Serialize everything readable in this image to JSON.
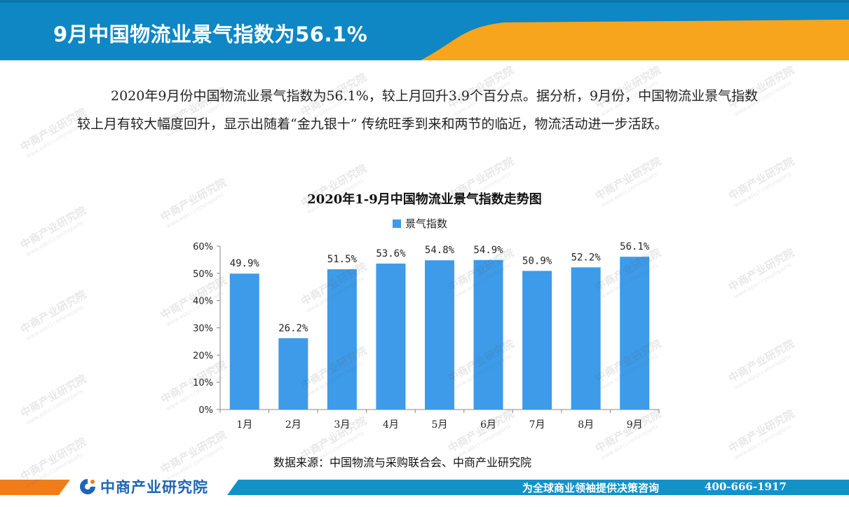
{
  "header": {
    "title": "9月中国物流业景气指数为56.1%",
    "colors": {
      "blue": "#0e87c4",
      "orange": "#f6a51d"
    }
  },
  "intro": {
    "text": "2020年9月份中国物流业景气指数为56.1%，较上月回升3.9个百分点。据分析，9月份，中国物流业景气指数较上月有较大幅度回升，显示出随着“金九银十” 传统旺季到来和两节的临近，物流活动进一步活跃。"
  },
  "chart_data": {
    "type": "bar",
    "title": "2020年1-9月中国物流业景气指数走势图",
    "categories": [
      "1月",
      "2月",
      "3月",
      "4月",
      "5月",
      "6月",
      "7月",
      "8月",
      "9月"
    ],
    "series": [
      {
        "name": "景气指数",
        "values": [
          49.9,
          26.2,
          51.5,
          53.6,
          54.8,
          54.9,
          50.9,
          52.2,
          56.1
        ],
        "color": "#3d9be9"
      }
    ],
    "data_labels": [
      "49.9%",
      "26.2%",
      "51.5%",
      "53.6%",
      "54.8%",
      "54.9%",
      "50.9%",
      "52.2%",
      "56.1%"
    ],
    "y_ticks": [
      "0%",
      "10%",
      "20%",
      "30%",
      "40%",
      "50%",
      "60%"
    ],
    "ylim": [
      0,
      60
    ],
    "legend_position": "top",
    "grid": false
  },
  "source": {
    "text": "数据来源：中国物流与采购联合会、中商产业研究院"
  },
  "footer": {
    "logo_text": "中商产业研究院",
    "slogan": "为全球商业领袖提供决策咨询",
    "phone": "400-666-1917",
    "colors": {
      "bar": "#1591c9",
      "accent": "#f07d1a",
      "logo": "#1f64b4"
    }
  },
  "watermark": {
    "main": "中商产业研究院",
    "sub": "www.askci.com/reports"
  }
}
